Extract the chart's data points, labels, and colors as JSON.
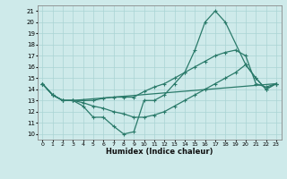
{
  "xlabel": "Humidex (Indice chaleur)",
  "bg_color": "#ceeaea",
  "grid_color": "#aad4d4",
  "line_color": "#2a7a6a",
  "xlim": [
    -0.5,
    23.5
  ],
  "ylim": [
    9.5,
    21.5
  ],
  "xticks": [
    0,
    1,
    2,
    3,
    4,
    5,
    6,
    7,
    8,
    9,
    10,
    11,
    12,
    13,
    14,
    15,
    16,
    17,
    18,
    19,
    20,
    21,
    22,
    23
  ],
  "yticks": [
    10,
    11,
    12,
    13,
    14,
    15,
    16,
    17,
    18,
    19,
    20,
    21
  ],
  "line1_x": [
    0,
    1,
    2,
    3,
    4,
    5,
    6,
    7,
    8,
    9,
    10,
    11,
    12,
    13,
    14,
    15,
    16,
    17,
    18,
    20,
    21,
    22,
    23
  ],
  "line1_y": [
    14.5,
    13.5,
    13.0,
    13.0,
    12.5,
    11.5,
    11.5,
    10.7,
    10.0,
    10.2,
    13.0,
    13.0,
    13.5,
    14.5,
    15.5,
    17.5,
    20.0,
    21.0,
    20.0,
    16.2,
    15.0,
    14.0,
    14.5
  ],
  "line2_x": [
    0,
    1,
    2,
    3,
    4,
    5,
    6,
    7,
    8,
    9,
    10,
    11,
    12,
    13,
    14,
    15,
    16,
    17,
    18,
    19,
    20,
    21,
    22,
    23
  ],
  "line2_y": [
    14.5,
    13.5,
    13.0,
    13.0,
    13.0,
    13.0,
    13.2,
    13.3,
    13.3,
    13.3,
    13.8,
    14.2,
    14.5,
    15.0,
    15.5,
    16.0,
    16.5,
    17.0,
    17.3,
    17.5,
    17.0,
    14.5,
    14.2,
    14.5
  ],
  "line3_x": [
    0,
    1,
    2,
    3,
    23
  ],
  "line3_y": [
    14.5,
    13.5,
    13.0,
    13.0,
    14.5
  ],
  "line4_x": [
    0,
    1,
    2,
    3,
    4,
    5,
    6,
    7,
    8,
    9,
    10,
    11,
    12,
    13,
    14,
    15,
    16,
    17,
    18,
    19,
    20,
    21,
    22,
    23
  ],
  "line4_y": [
    14.5,
    13.5,
    13.0,
    13.0,
    12.8,
    12.5,
    12.3,
    12.0,
    11.8,
    11.5,
    11.5,
    11.7,
    12.0,
    12.5,
    13.0,
    13.5,
    14.0,
    14.5,
    15.0,
    15.5,
    16.2,
    15.0,
    14.0,
    14.5
  ]
}
